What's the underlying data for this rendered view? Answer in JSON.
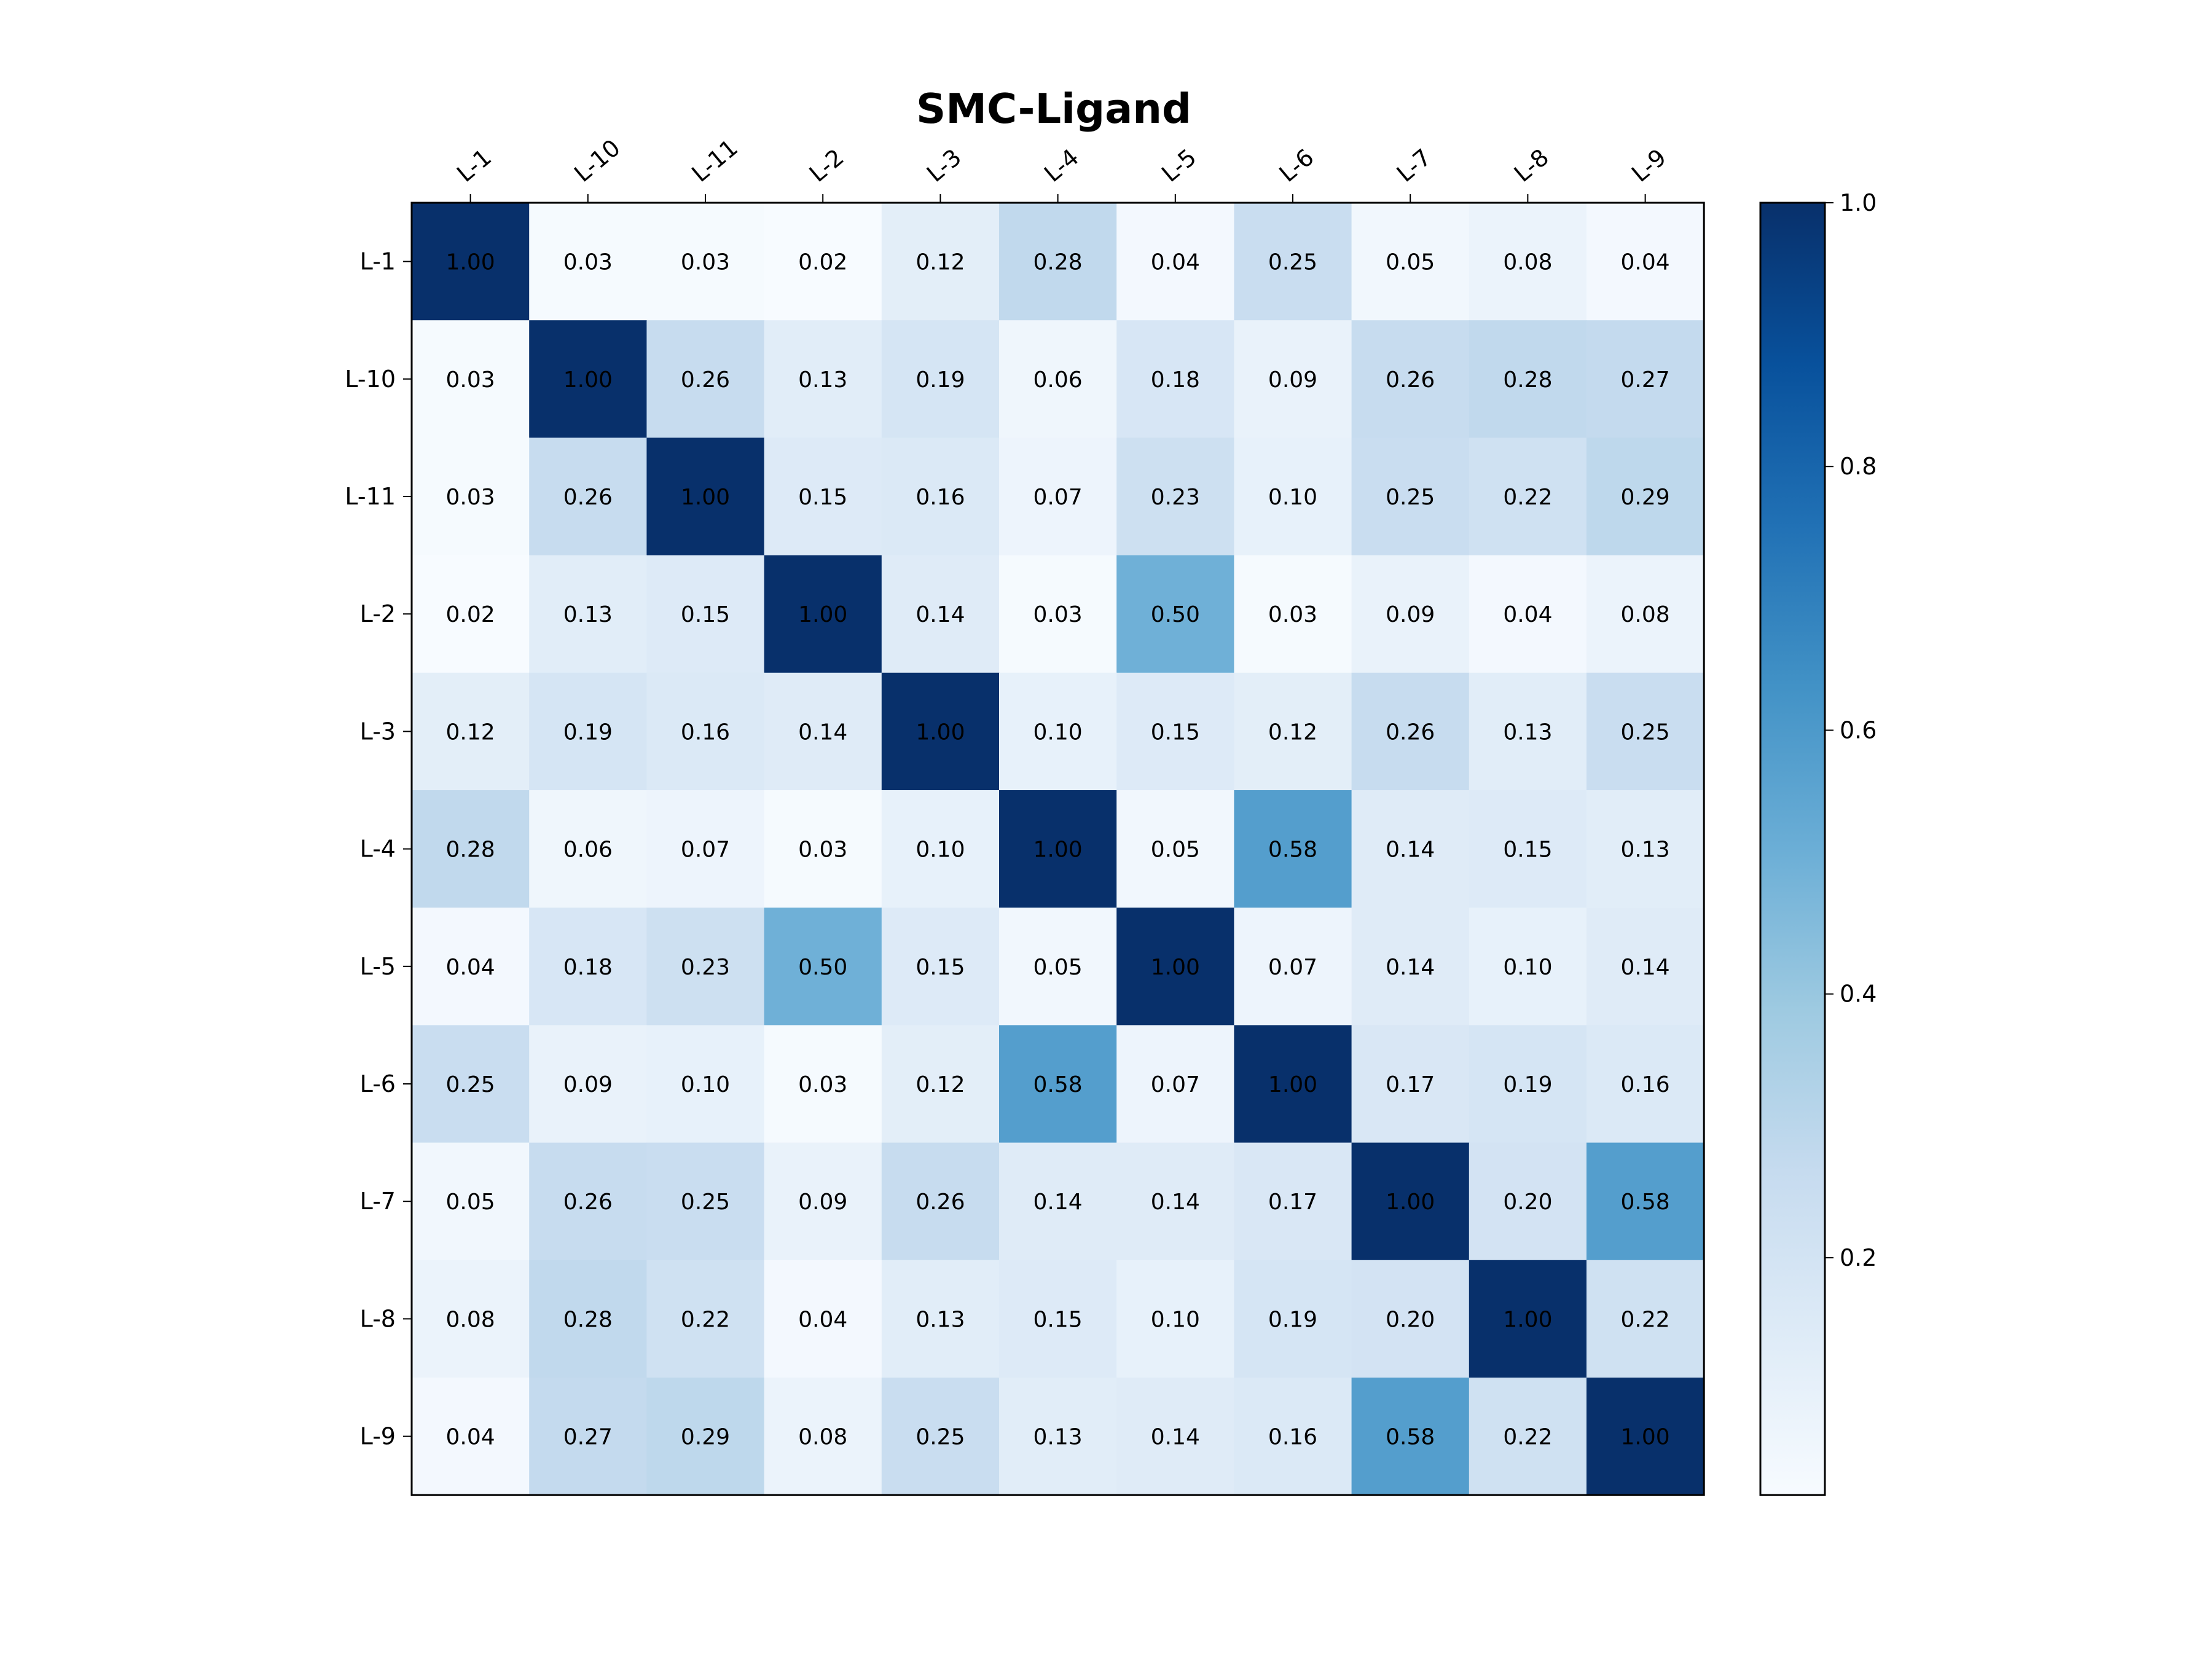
{
  "chart_data": {
    "type": "heatmap",
    "title": "SMC-Ligand",
    "x_labels": [
      "L-1",
      "L-10",
      "L-11",
      "L-2",
      "L-3",
      "L-4",
      "L-5",
      "L-6",
      "L-7",
      "L-8",
      "L-9"
    ],
    "y_labels": [
      "L-1",
      "L-10",
      "L-11",
      "L-2",
      "L-3",
      "L-4",
      "L-5",
      "L-6",
      "L-7",
      "L-8",
      "L-9"
    ],
    "values": [
      [
        1.0,
        0.03,
        0.03,
        0.02,
        0.12,
        0.28,
        0.04,
        0.25,
        0.05,
        0.08,
        0.04
      ],
      [
        0.03,
        1.0,
        0.26,
        0.13,
        0.19,
        0.06,
        0.18,
        0.09,
        0.26,
        0.28,
        0.27
      ],
      [
        0.03,
        0.26,
        1.0,
        0.15,
        0.16,
        0.07,
        0.23,
        0.1,
        0.25,
        0.22,
        0.29
      ],
      [
        0.02,
        0.13,
        0.15,
        1.0,
        0.14,
        0.03,
        0.5,
        0.03,
        0.09,
        0.04,
        0.08
      ],
      [
        0.12,
        0.19,
        0.16,
        0.14,
        1.0,
        0.1,
        0.15,
        0.12,
        0.26,
        0.13,
        0.25
      ],
      [
        0.28,
        0.06,
        0.07,
        0.03,
        0.1,
        1.0,
        0.05,
        0.58,
        0.14,
        0.15,
        0.13
      ],
      [
        0.04,
        0.18,
        0.23,
        0.5,
        0.15,
        0.05,
        1.0,
        0.07,
        0.14,
        0.1,
        0.14
      ],
      [
        0.25,
        0.09,
        0.1,
        0.03,
        0.12,
        0.58,
        0.07,
        1.0,
        0.17,
        0.19,
        0.16
      ],
      [
        0.05,
        0.26,
        0.25,
        0.09,
        0.26,
        0.14,
        0.14,
        0.17,
        1.0,
        0.2,
        0.58
      ],
      [
        0.08,
        0.28,
        0.22,
        0.04,
        0.13,
        0.15,
        0.1,
        0.19,
        0.2,
        1.0,
        0.22
      ],
      [
        0.04,
        0.27,
        0.29,
        0.08,
        0.25,
        0.13,
        0.14,
        0.16,
        0.58,
        0.22,
        1.0
      ]
    ],
    "value_format": "0.00",
    "colormap": "Blues",
    "color_range": [
      0.02,
      1.0
    ],
    "colorbar_ticks": [
      "0.2",
      "0.4",
      "0.6",
      "0.8",
      "1.0"
    ],
    "x_tick_position": "top",
    "x_tick_rotation": "45",
    "grid": false
  }
}
